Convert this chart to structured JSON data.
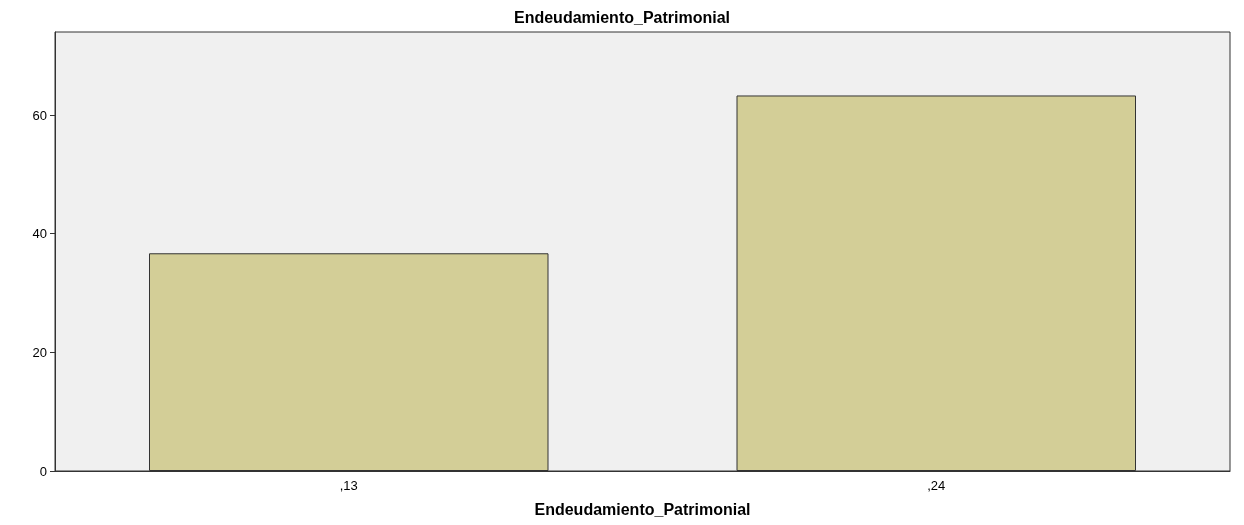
{
  "chart_data": {
    "type": "bar",
    "title": "Endeudamiento_Patrimonial",
    "xlabel": "Endeudamiento_Patrimonial",
    "categories": [
      ",13",
      ",24"
    ],
    "values": [
      36.7,
      63.3
    ],
    "color": "#d3ce97",
    "ylim": [
      0,
      74
    ],
    "yticks": [
      0,
      20,
      40,
      60
    ]
  }
}
